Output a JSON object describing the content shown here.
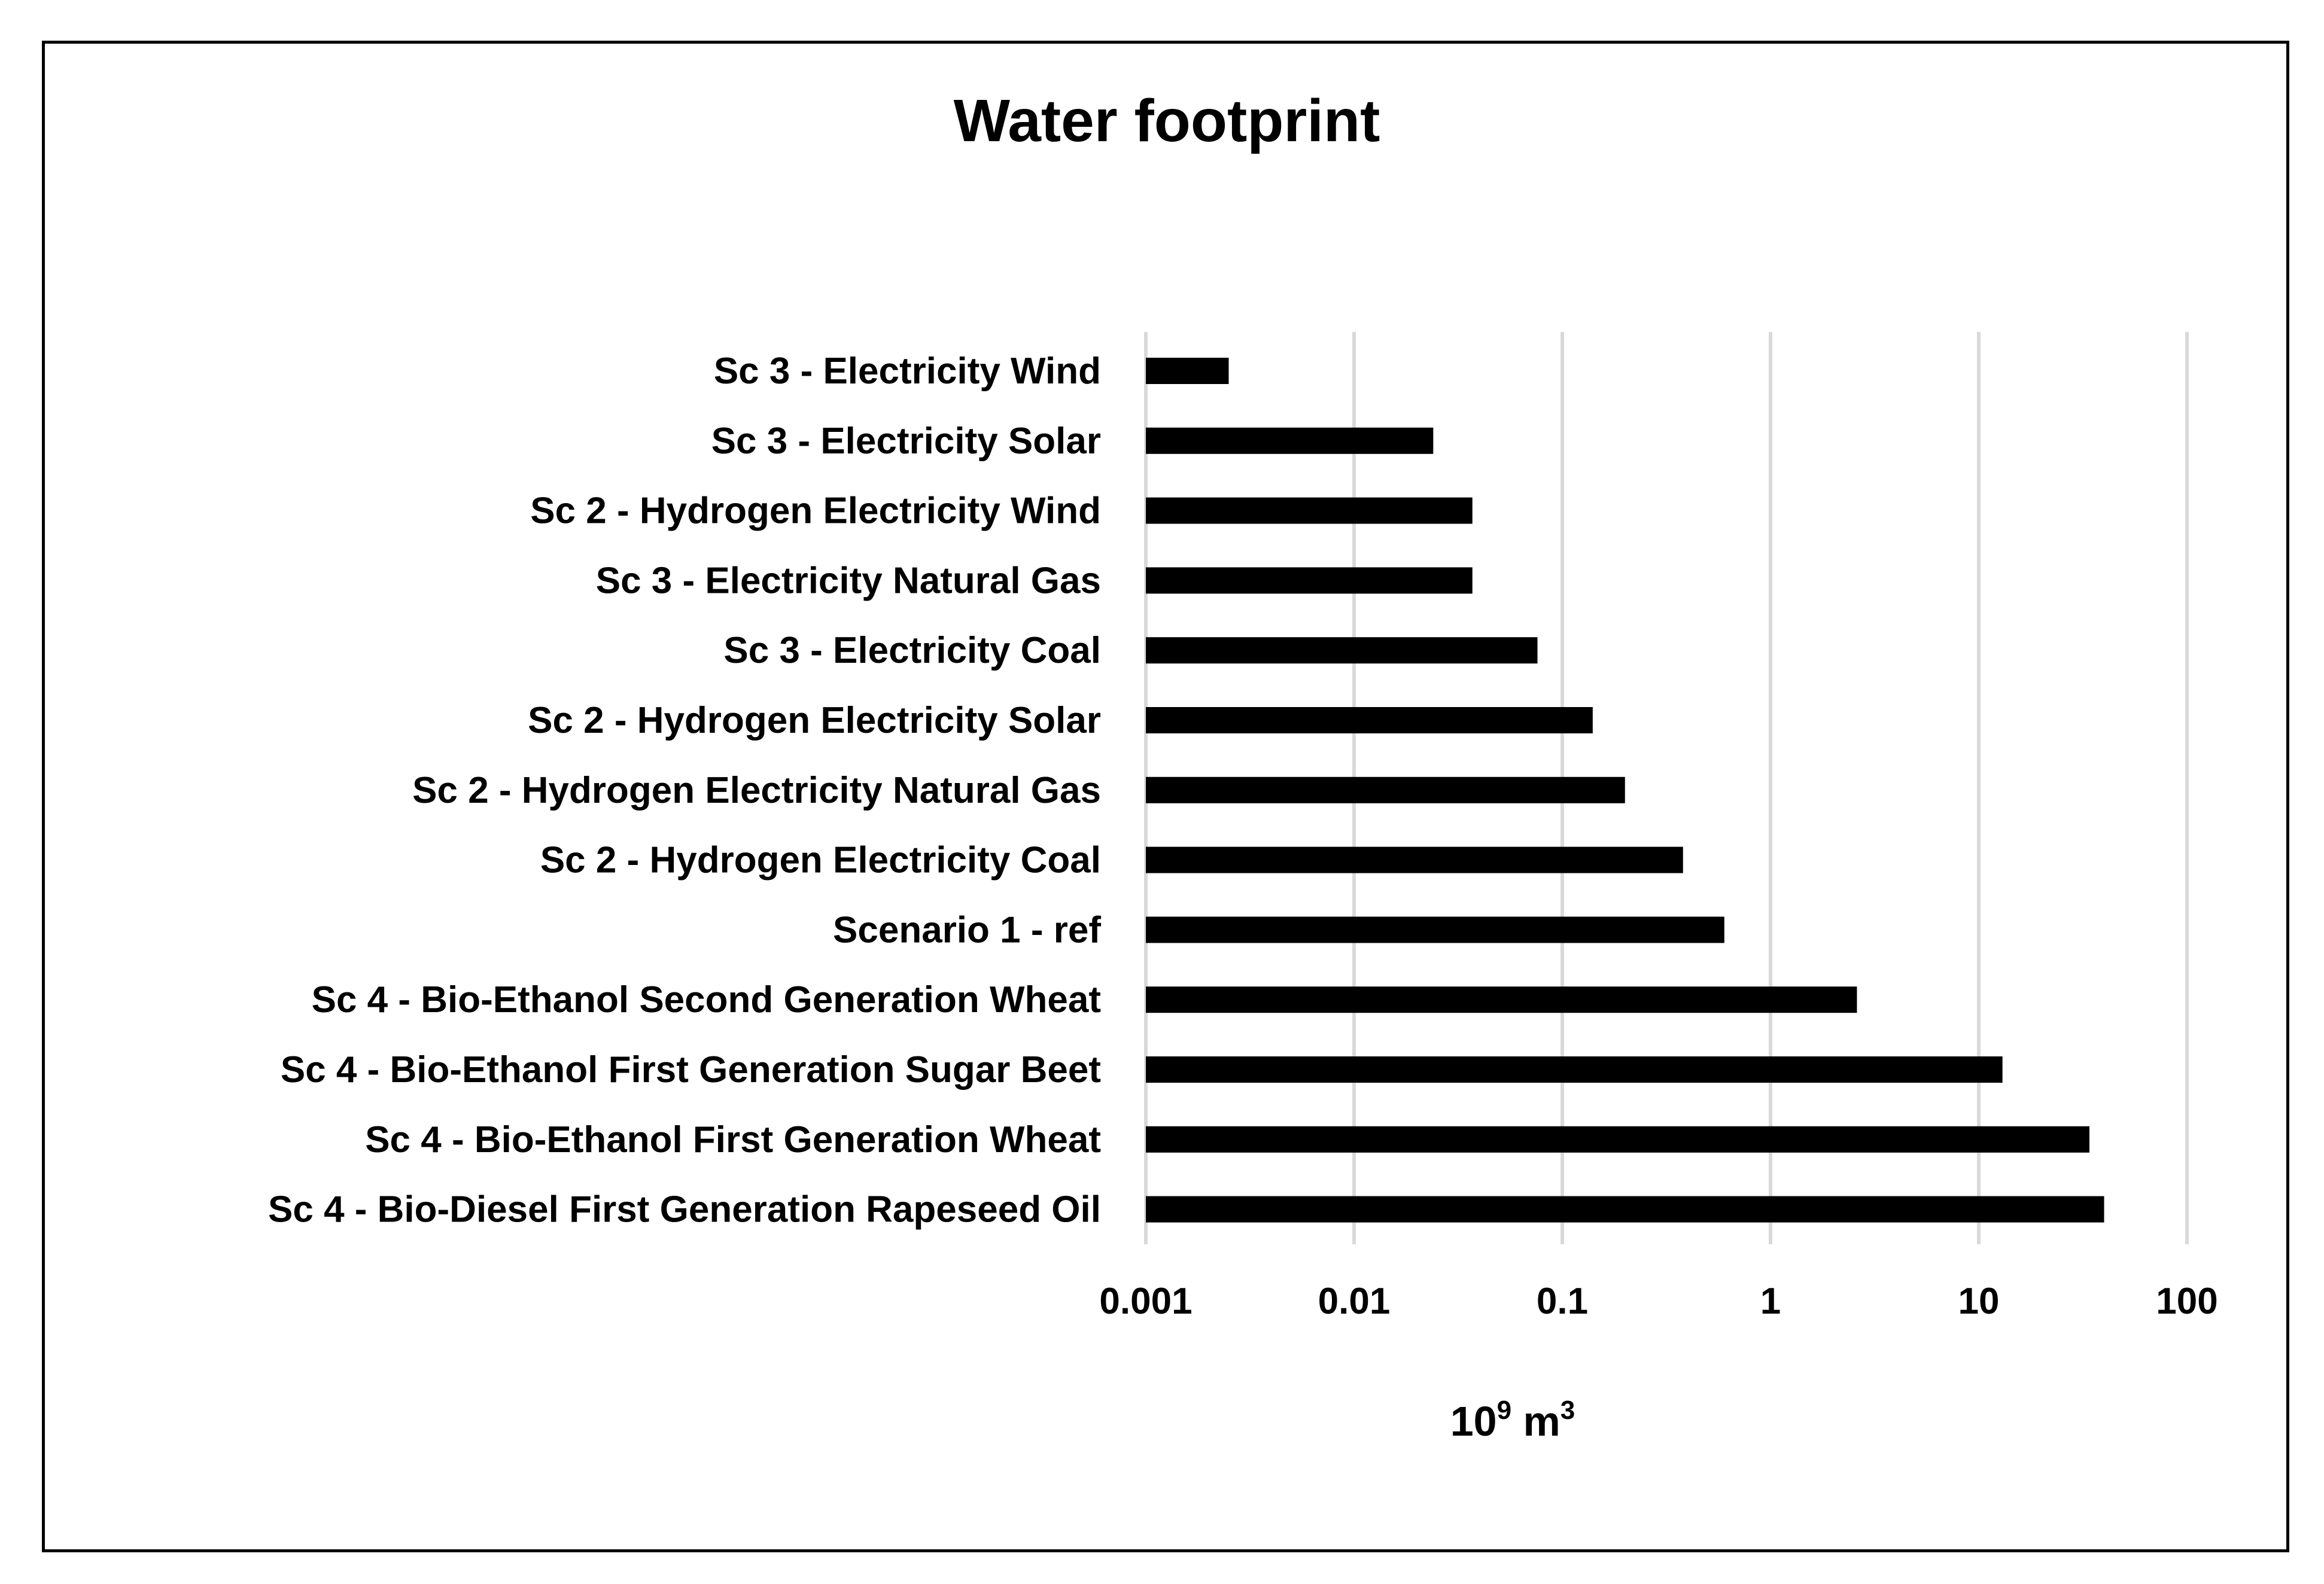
{
  "chart_data": {
    "type": "bar",
    "orientation": "horizontal",
    "title": "Water footprint",
    "xlabel": {
      "base": "10",
      "exp1": "9",
      "unit": " m",
      "exp2": "3"
    },
    "ylabel": "",
    "xscale": "log",
    "xlim": [
      0.001,
      100
    ],
    "x_ticks": [
      0.001,
      0.01,
      0.1,
      1,
      10,
      100
    ],
    "x_tick_labels": [
      "0.001",
      "0.01",
      "0.1",
      "1",
      "10",
      "100"
    ],
    "grid": true,
    "bar_color": "#000000",
    "grid_color": "#d9d9d9",
    "categories": [
      "Sc 3 - Electricity Wind",
      "Sc 3 - Electricity Solar",
      "Sc 2 - Hydrogen Electricity Wind",
      "Sc 3 - Electricity Natural Gas",
      "Sc 3 - Electricity Coal",
      "Sc 2 - Hydrogen Electricity Solar",
      "Sc 2 - Hydrogen Electricity Natural Gas",
      "Sc 2 - Hydrogen Electricity Coal",
      "Scenario 1 - ref",
      "Sc 4 - Bio-Ethanol Second Generation Wheat",
      "Sc 4 - Bio-Ethanol First Generation Sugar Beet",
      "Sc 4 - Bio-Ethanol First Generation Wheat",
      "Sc 4 - Bio-Diesel First Generation Rapeseed Oil"
    ],
    "values": [
      0.0025,
      0.024,
      0.037,
      0.037,
      0.076,
      0.14,
      0.2,
      0.38,
      0.6,
      2.6,
      13,
      34,
      40
    ]
  }
}
